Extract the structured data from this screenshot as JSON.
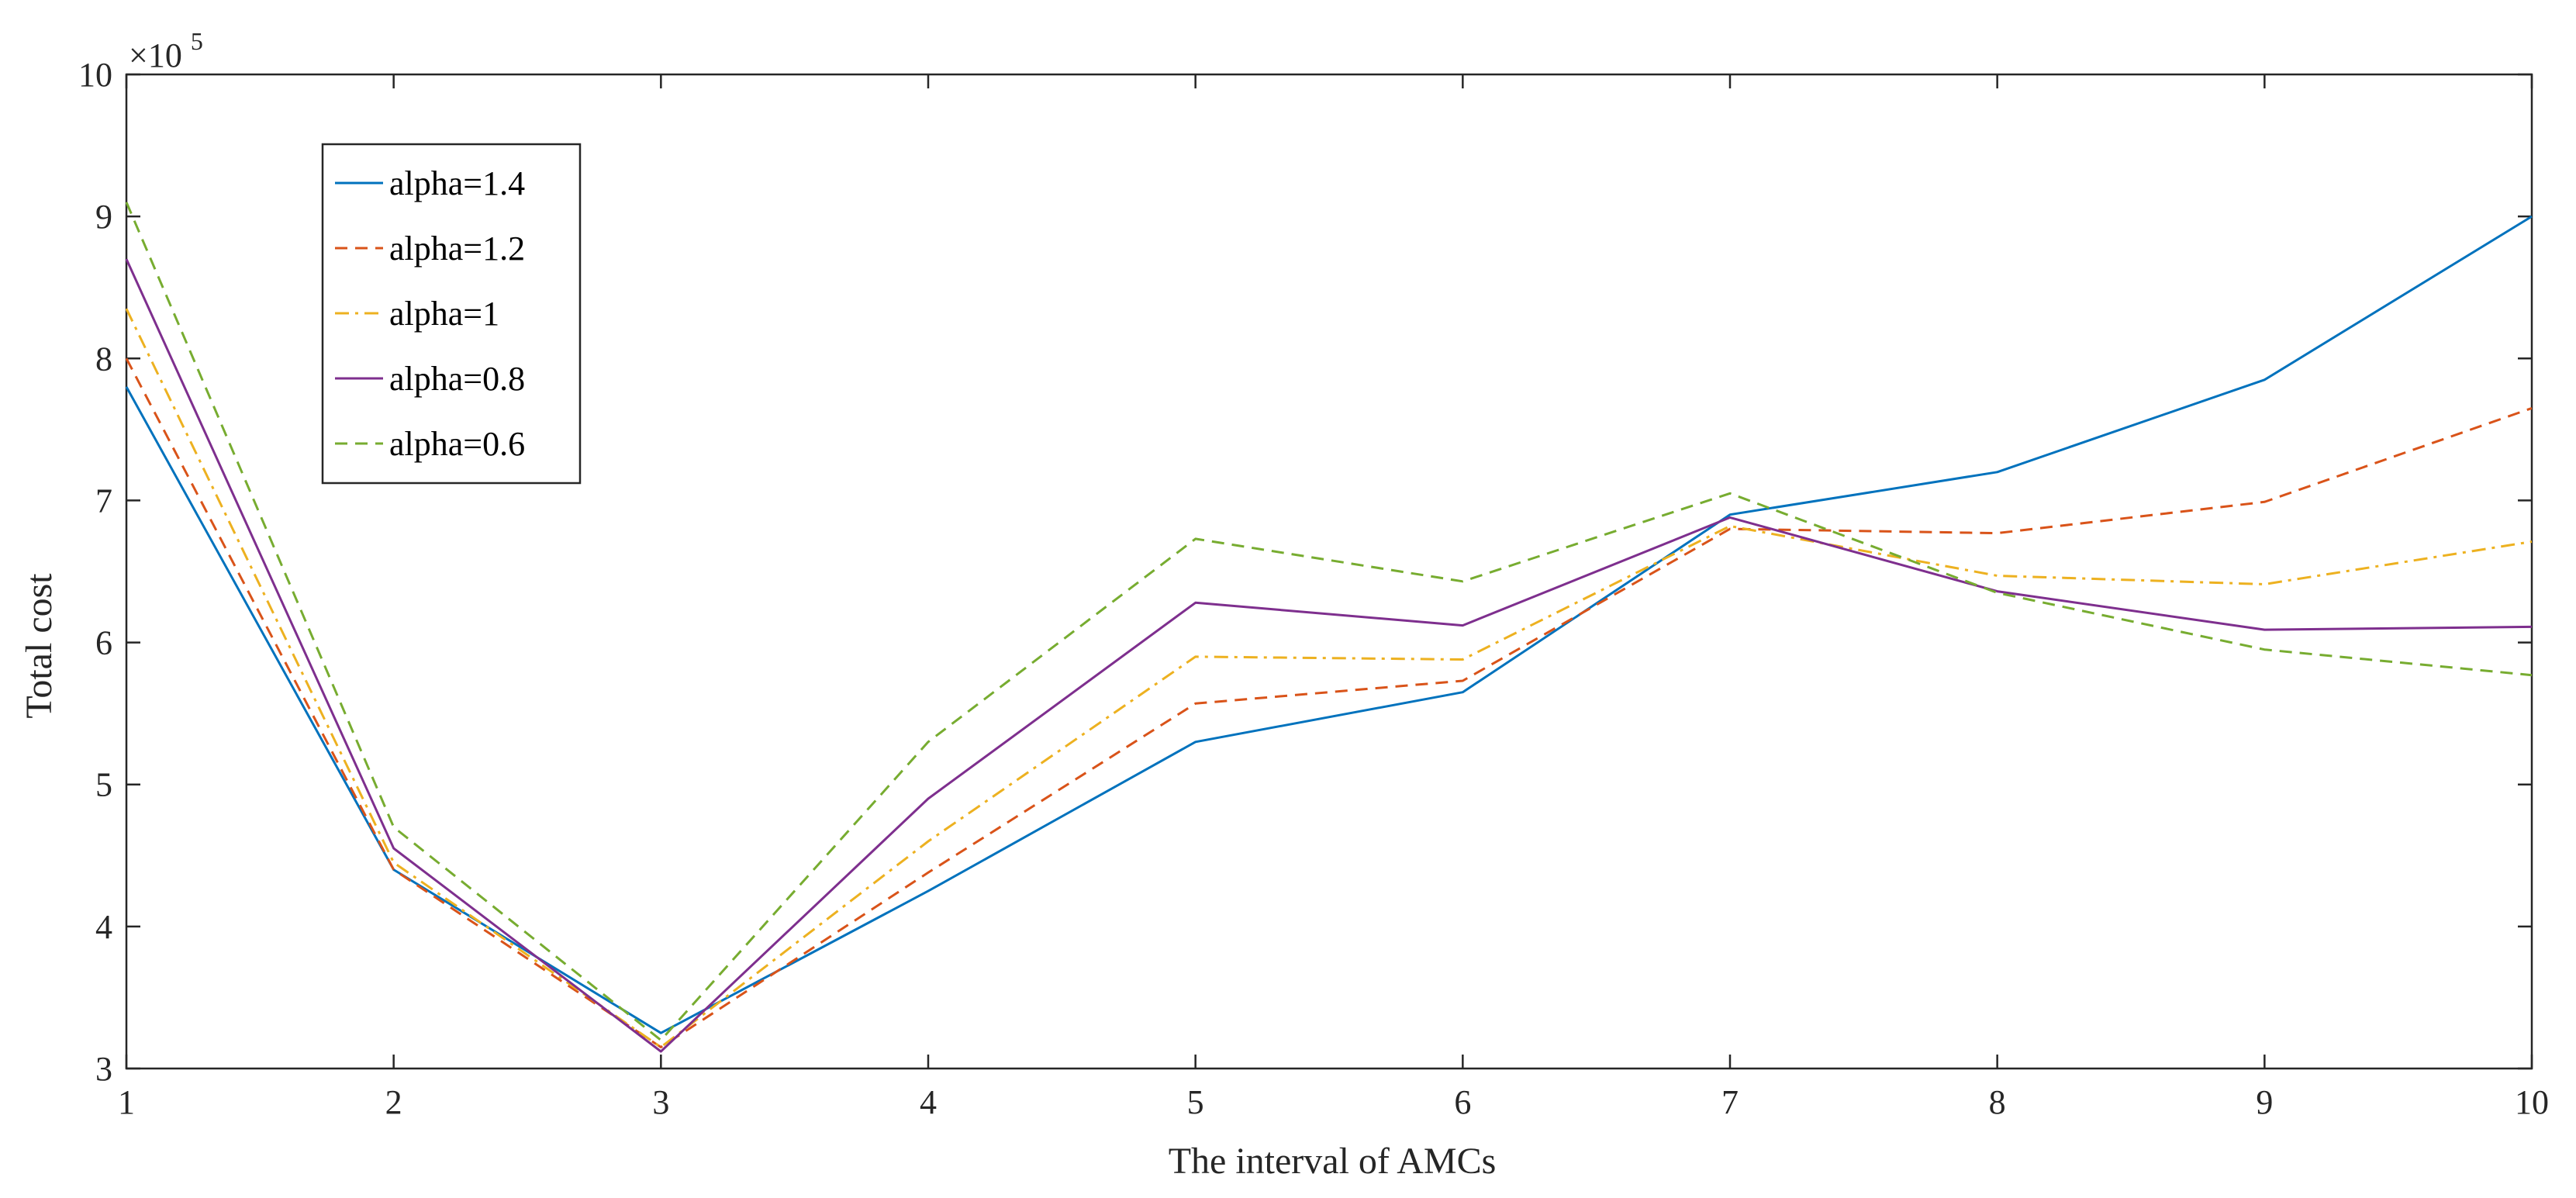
{
  "chart_data": {
    "type": "line",
    "title": "",
    "xlabel": "The interval of AMCs",
    "ylabel": "Total cost",
    "x": [
      1,
      2,
      3,
      4,
      5,
      6,
      7,
      8,
      9,
      10
    ],
    "xlim": [
      1,
      10
    ],
    "ylim": [
      3,
      10
    ],
    "xticks": [
      "1",
      "2",
      "3",
      "4",
      "5",
      "6",
      "7",
      "8",
      "9",
      "10"
    ],
    "yticks": [
      "3",
      "4",
      "5",
      "6",
      "7",
      "8",
      "9",
      "10"
    ],
    "y_multiplier": {
      "base": "×10",
      "exponent": "5"
    },
    "grid": false,
    "legend_position": "top-left",
    "series": [
      {
        "name": "alpha=1.4",
        "color": "#0072BD",
        "dash": "solid",
        "values": [
          7.8,
          4.4,
          3.25,
          4.25,
          5.3,
          5.65,
          6.9,
          7.2,
          7.85,
          9.0
        ]
      },
      {
        "name": "alpha=1.2",
        "color": "#D95319",
        "dash": "dashed",
        "values": [
          8.0,
          4.4,
          3.15,
          4.38,
          5.57,
          5.73,
          6.8,
          6.77,
          6.99,
          7.65
        ]
      },
      {
        "name": "alpha=1",
        "color": "#EDB120",
        "dash": "dashdot",
        "values": [
          8.35,
          4.45,
          3.15,
          4.6,
          5.9,
          5.88,
          6.82,
          6.47,
          6.41,
          6.71
        ]
      },
      {
        "name": "alpha=0.8",
        "color": "#7E2F8E",
        "dash": "solid",
        "values": [
          8.7,
          4.55,
          3.12,
          4.9,
          6.28,
          6.12,
          6.88,
          6.36,
          6.09,
          6.11
        ]
      },
      {
        "name": "alpha=0.6",
        "color": "#77AC30",
        "dash": "dashed",
        "values": [
          9.1,
          4.7,
          3.2,
          5.3,
          6.73,
          6.43,
          7.05,
          6.35,
          5.95,
          5.77
        ]
      }
    ]
  }
}
